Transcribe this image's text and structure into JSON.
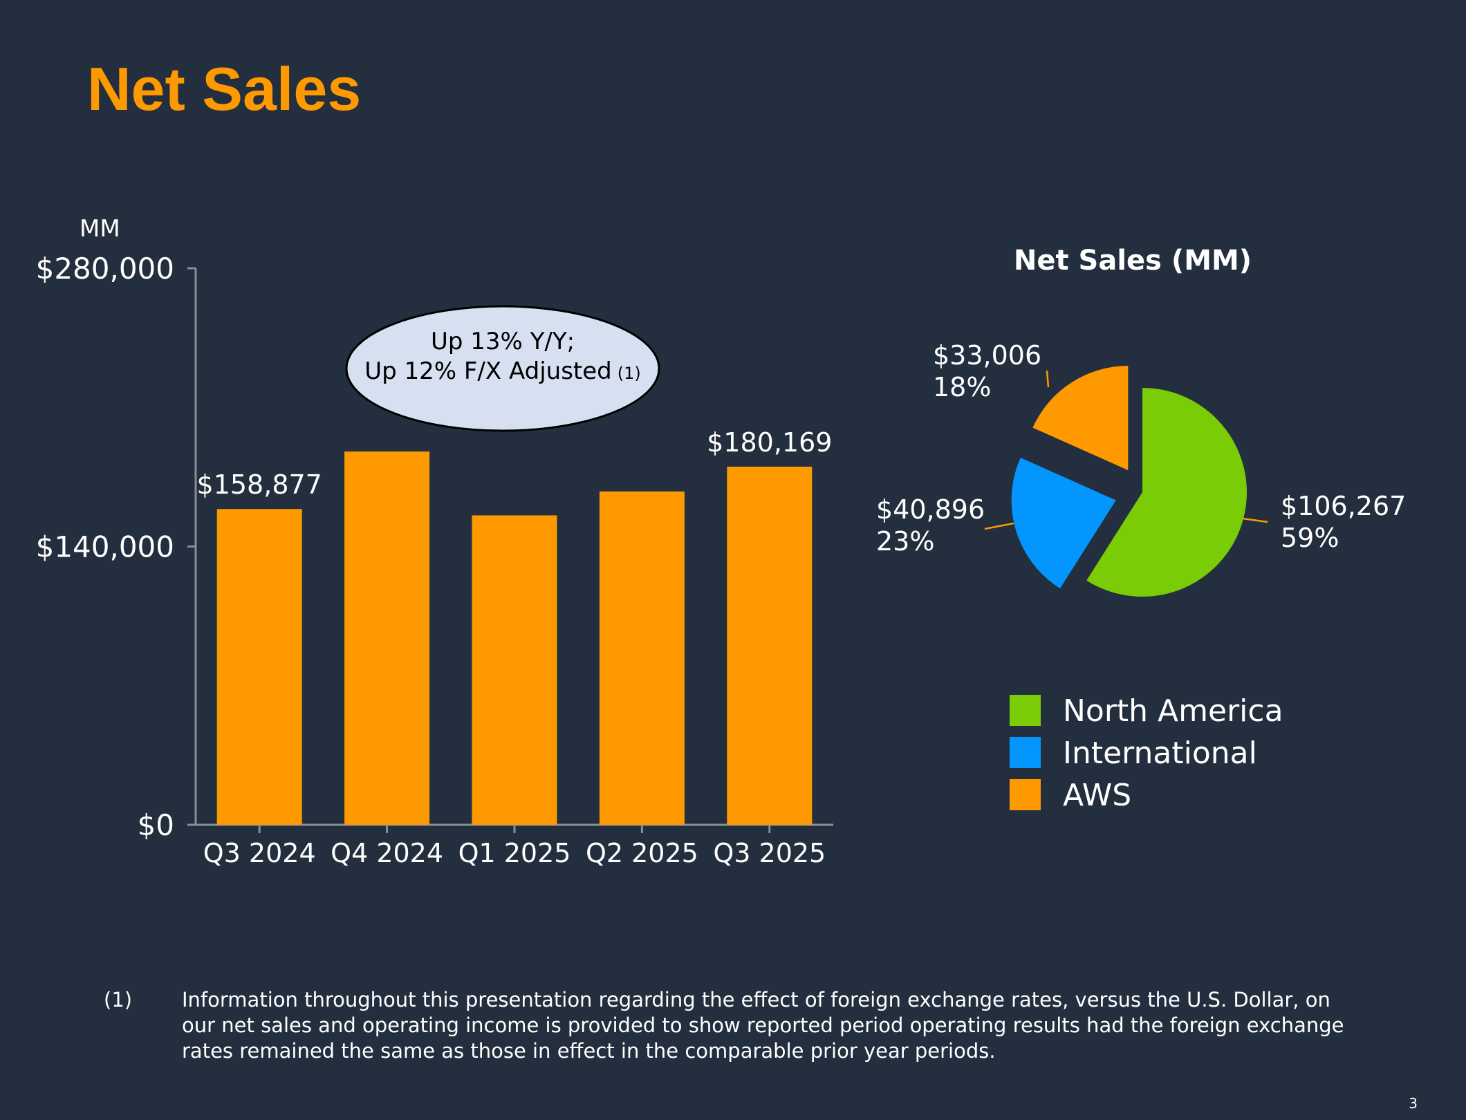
{
  "page": {
    "title": "Net Sales",
    "page_number": "3"
  },
  "colors": {
    "background": "#232F3E",
    "accent": "#FF9900",
    "north_america": "#7ACC07",
    "international": "#0496FF",
    "aws": "#FF9900",
    "callout_fill": "#D6E0F0"
  },
  "chart_data": [
    {
      "type": "bar",
      "unit_label": "MM",
      "categories": [
        "Q3 2024",
        "Q4 2024",
        "Q1 2025",
        "Q2 2025",
        "Q3 2025"
      ],
      "values": [
        158877,
        187792,
        155667,
        167702,
        180169
      ],
      "data_labels": [
        "$158,877",
        "",
        "",
        "",
        "$180,169"
      ],
      "yticks": [
        "$0",
        "$140,000",
        "$280,000"
      ],
      "ytick_values": [
        0,
        140000,
        280000
      ],
      "ylim": [
        0,
        280000
      ],
      "grid": false,
      "callout": {
        "line1": "Up 13% Y/Y;",
        "line2": "Up 12% F/X Adjusted",
        "footnote_ref": "(1)"
      }
    },
    {
      "type": "pie",
      "title": "Net Sales (MM)",
      "slices": [
        {
          "name": "North America",
          "value": 106267,
          "value_label": "$106,267",
          "percent_label": "59%"
        },
        {
          "name": "International",
          "value": 40896,
          "value_label": "$40,896",
          "percent_label": "23%"
        },
        {
          "name": "AWS",
          "value": 33006,
          "value_label": "$33,006",
          "percent_label": "18%"
        }
      ],
      "legend_placement": "bottom"
    }
  ],
  "footnote": {
    "marker": "(1)",
    "text": "Information throughout this presentation regarding the effect of foreign exchange rates, versus the U.S. Dollar, on our net sales and operating income is provided to show reported period operating results had the foreign exchange rates remained the same as those in effect in the comparable prior year periods."
  }
}
